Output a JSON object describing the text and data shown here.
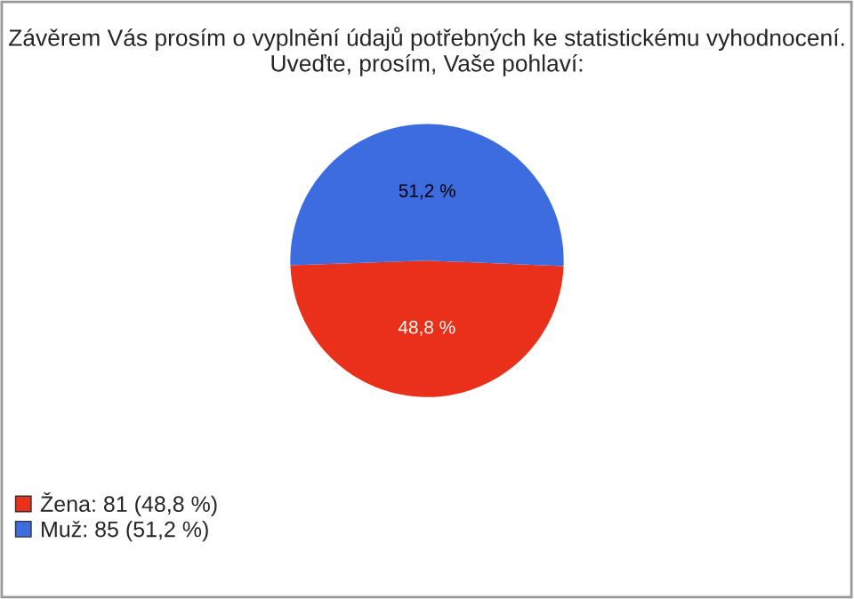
{
  "chart_data": {
    "type": "pie",
    "title": "Závěrem Vás prosím o vyplnění údajů potřebných ke statistickému vyhodnocení. Uveďte, prosím, Vaše pohlaví:",
    "categories": [
      "Žena: 81 (48,8 %)",
      "Muž: 85 (51,2 %)"
    ],
    "values": [
      48.8,
      51.2
    ],
    "colors": [
      "#e8301a",
      "#3d6be0"
    ],
    "value_labels": [
      "48,8 %",
      "51,2 %"
    ],
    "legend": "bottom left"
  }
}
